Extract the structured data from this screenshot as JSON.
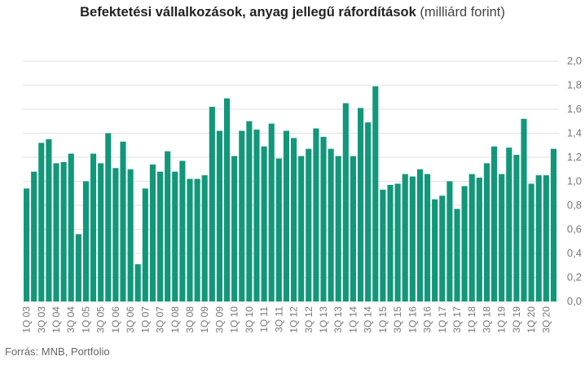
{
  "title_bold": "Befektetési vállalkozások, anyag jellegű ráfordítások",
  "title_unit": "(milliárd forint)",
  "source": "Forrás: MNB, Portfolio",
  "colors": {
    "bar": "#12977a",
    "grid": "#e2e2e2",
    "tick": "#777777"
  },
  "chart_data": {
    "type": "bar",
    "title": "Befektetési vállalkozások, anyag jellegű ráfordítások (milliárd forint)",
    "ylabel": "milliárd forint",
    "ylim": [
      0,
      2.0
    ],
    "yticks": [
      "0,0",
      "0,2",
      "0,4",
      "0,6",
      "0,8",
      "1,0",
      "1,2",
      "1,4",
      "1,6",
      "1,8",
      "2,0"
    ],
    "ytick_values": [
      0,
      0.2,
      0.4,
      0.6,
      0.8,
      1.0,
      1.2,
      1.4,
      1.6,
      1.8,
      2.0
    ],
    "y_axis_position": "right",
    "grid": true,
    "categories": [
      "1Q 03",
      "2Q 03",
      "3Q 03",
      "4Q 03",
      "1Q 04",
      "2Q 04",
      "3Q 04",
      "4Q 04",
      "1Q 05",
      "2Q 05",
      "3Q 05",
      "4Q 05",
      "1Q 06",
      "2Q 06",
      "3Q 06",
      "4Q 06",
      "1Q 07",
      "2Q 07",
      "3Q 07",
      "4Q 07",
      "1Q 08",
      "2Q 08",
      "3Q 08",
      "4Q 08",
      "1Q 09",
      "2Q 09",
      "3Q 09",
      "4Q 09",
      "1Q 10",
      "2Q 10",
      "3Q 10",
      "4Q 10",
      "1Q 11",
      "2Q 11",
      "3Q 11",
      "4Q 11",
      "1Q 12",
      "2Q 12",
      "3Q 12",
      "4Q 12",
      "1Q 13",
      "2Q 13",
      "3Q 13",
      "4Q 13",
      "1Q 14",
      "2Q 14",
      "3Q 14",
      "4Q 14",
      "1Q 15",
      "2Q 15",
      "3Q 15",
      "4Q 15",
      "1Q 16",
      "2Q 16",
      "3Q 16",
      "4Q 16",
      "1Q 17",
      "2Q 17",
      "3Q 17",
      "4Q 17",
      "1Q 18",
      "2Q 18",
      "3Q 18",
      "4Q 18",
      "1Q 19",
      "2Q 19",
      "3Q 19",
      "4Q 19",
      "1Q 20",
      "2Q 20",
      "3Q 20",
      "4Q 20"
    ],
    "values": [
      0.94,
      1.08,
      1.32,
      1.35,
      1.15,
      1.16,
      1.23,
      0.56,
      1.0,
      1.23,
      1.15,
      1.4,
      1.11,
      1.33,
      1.1,
      0.31,
      0.94,
      1.14,
      1.08,
      1.25,
      1.08,
      1.17,
      1.02,
      1.02,
      1.05,
      1.62,
      1.42,
      1.69,
      1.21,
      1.42,
      1.5,
      1.43,
      1.29,
      1.48,
      1.19,
      1.42,
      1.36,
      1.21,
      1.27,
      1.44,
      1.37,
      1.27,
      1.21,
      1.65,
      1.21,
      1.61,
      1.49,
      1.79,
      0.93,
      0.97,
      0.98,
      1.06,
      1.04,
      1.1,
      1.06,
      0.85,
      0.88,
      1.0,
      0.77,
      0.96,
      1.06,
      1.03,
      1.15,
      1.29,
      1.06,
      1.28,
      1.22,
      1.52,
      0.98,
      1.05,
      1.05,
      1.27
    ],
    "xtick_labels_shown": [
      "1Q 03",
      "3Q 03",
      "1Q 04",
      "3Q 04",
      "1Q 05",
      "3Q 05",
      "1Q 06",
      "3Q 06",
      "1Q 07",
      "3Q 07",
      "1Q 08",
      "3Q 08",
      "1Q 09",
      "3Q 09",
      "1Q 10",
      "3Q 10",
      "1Q 11",
      "3Q 11",
      "1Q 12",
      "3Q 12",
      "1Q 13",
      "3Q 13",
      "1Q 14",
      "3Q 14",
      "1Q 15",
      "3Q 15",
      "1Q 16",
      "3Q 16",
      "1Q 17",
      "3Q 17",
      "1Q 18",
      "3Q 18",
      "1Q 19",
      "3Q 19",
      "1Q 20",
      "3Q 20"
    ]
  }
}
